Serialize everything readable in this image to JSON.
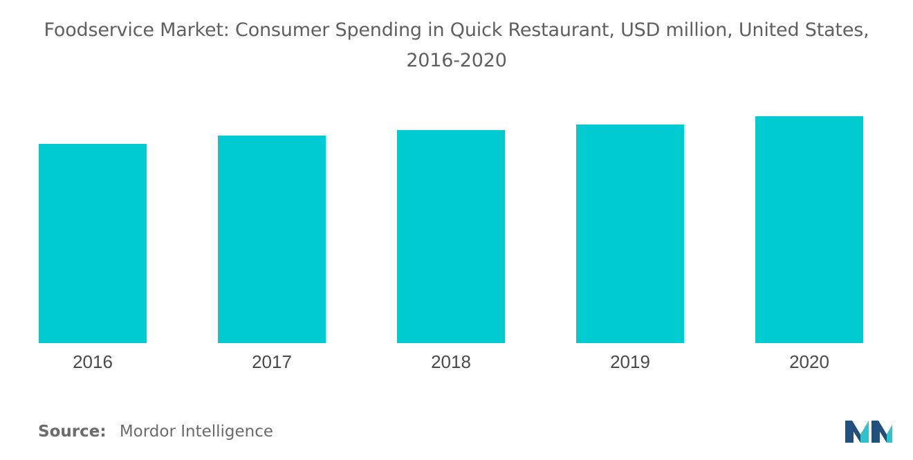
{
  "colors": {
    "bar": "#00cbd1",
    "logo_dark": "#1f4f7a",
    "logo_light": "#2ec4cf"
  },
  "source": {
    "label": "Source:",
    "text": "Mordor Intelligence"
  },
  "logo": {
    "icon": "mordor-intelligence-logo"
  },
  "chart_data": {
    "type": "bar",
    "title_line1": "Foodservice Market: Consumer Spending in Quick Restaurant, USD million, United States,",
    "title_line2": "2016-2020",
    "categories": [
      "2016",
      "2017",
      "2018",
      "2019",
      "2020"
    ],
    "values": [
      72,
      75,
      77,
      79,
      82
    ],
    "ylim": [
      0,
      100
    ],
    "grid": false,
    "legend": "none"
  }
}
